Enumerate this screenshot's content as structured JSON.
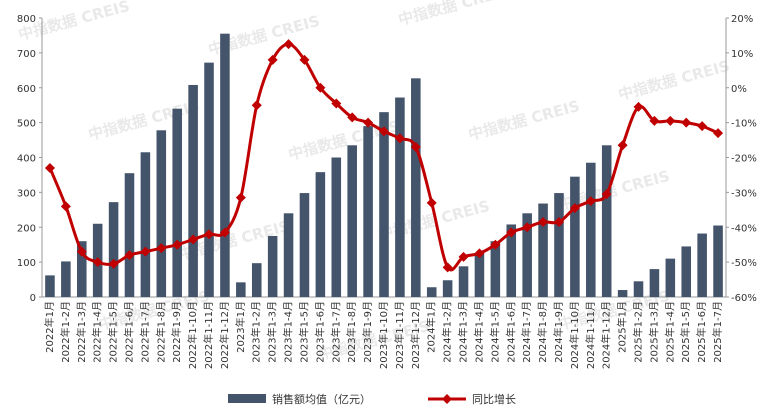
{
  "chart_data": {
    "type": "bar_line",
    "watermark": "中指数据 CREIS",
    "categories": [
      "2022年1月",
      "2022年1-2月",
      "2022年1-3月",
      "2022年1-4月",
      "2022年1-5月",
      "2022年1-6月",
      "2022年1-7月",
      "2022年1-8月",
      "2022年1-9月",
      "2022年1-10月",
      "2022年1-11月",
      "2022年1-12月",
      "2023年1月",
      "2023年1-2月",
      "2023年1-3月",
      "2023年1-4月",
      "2023年1-5月",
      "2023年1-6月",
      "2023年1-7月",
      "2023年1-8月",
      "2023年1-9月",
      "2023年1-10月",
      "2023年1-11月",
      "2023年1-12月",
      "2024年1月",
      "2024年1-2月",
      "2024年1-3月",
      "2024年1-4月",
      "2024年1-5月",
      "2024年1-6月",
      "2024年1-7月",
      "2024年1-8月",
      "2024年1-9月",
      "2024年1-10月",
      "2024年1-11月",
      "2024年1-12月",
      "2025年1月",
      "2025年1-2月",
      "2025年1-3月",
      "2025年1-4月",
      "2025年1-5月",
      "2025年1-6月",
      "2025年1-7月"
    ],
    "series": [
      {
        "name": "销售额均值（亿元）",
        "color": "#44546a",
        "type": "bar",
        "values": [
          62,
          102,
          160,
          210,
          272,
          355,
          415,
          478,
          540,
          608,
          672,
          755,
          42,
          97,
          175,
          240,
          298,
          358,
          400,
          435,
          490,
          530,
          572,
          627,
          28,
          48,
          88,
          125,
          160,
          208,
          240,
          268,
          298,
          345,
          385,
          435,
          20,
          45,
          80,
          110,
          145,
          182,
          205
        ]
      },
      {
        "name": "同比增长",
        "color": "#c00000",
        "type": "line",
        "axis": "y2",
        "values": [
          -23,
          -34,
          -47,
          -50,
          -50.5,
          -48,
          -47,
          -46,
          -45,
          -43.5,
          -42,
          -41.5,
          -31.5,
          -5,
          8,
          12.5,
          8,
          0,
          -4.5,
          -8.5,
          -10,
          -12.5,
          -14.5,
          -17,
          -33,
          -51.5,
          -48.5,
          -47.5,
          -45,
          -41.5,
          -40,
          -38.5,
          -38.5,
          -34.5,
          -32.5,
          -30.5,
          -16.5,
          -5.5,
          -9.5,
          -9.5,
          -10,
          -11,
          -13
        ]
      }
    ],
    "ylim": [
      0,
      800
    ],
    "yticks": [
      0,
      100,
      200,
      300,
      400,
      500,
      600,
      700,
      800
    ],
    "y2lim": [
      -60,
      20
    ],
    "y2ticks": [
      {
        "value": -60,
        "label": "-60%"
      },
      {
        "value": -50,
        "label": "-50%"
      },
      {
        "value": -40,
        "label": "-40%"
      },
      {
        "value": -30,
        "label": "-30%"
      },
      {
        "value": -20,
        "label": "-20%"
      },
      {
        "value": -10,
        "label": "-10%"
      },
      {
        "value": 0,
        "label": "0%"
      },
      {
        "value": 10,
        "label": "10%"
      },
      {
        "value": 20,
        "label": "20%"
      }
    ],
    "legend": "bottom"
  }
}
